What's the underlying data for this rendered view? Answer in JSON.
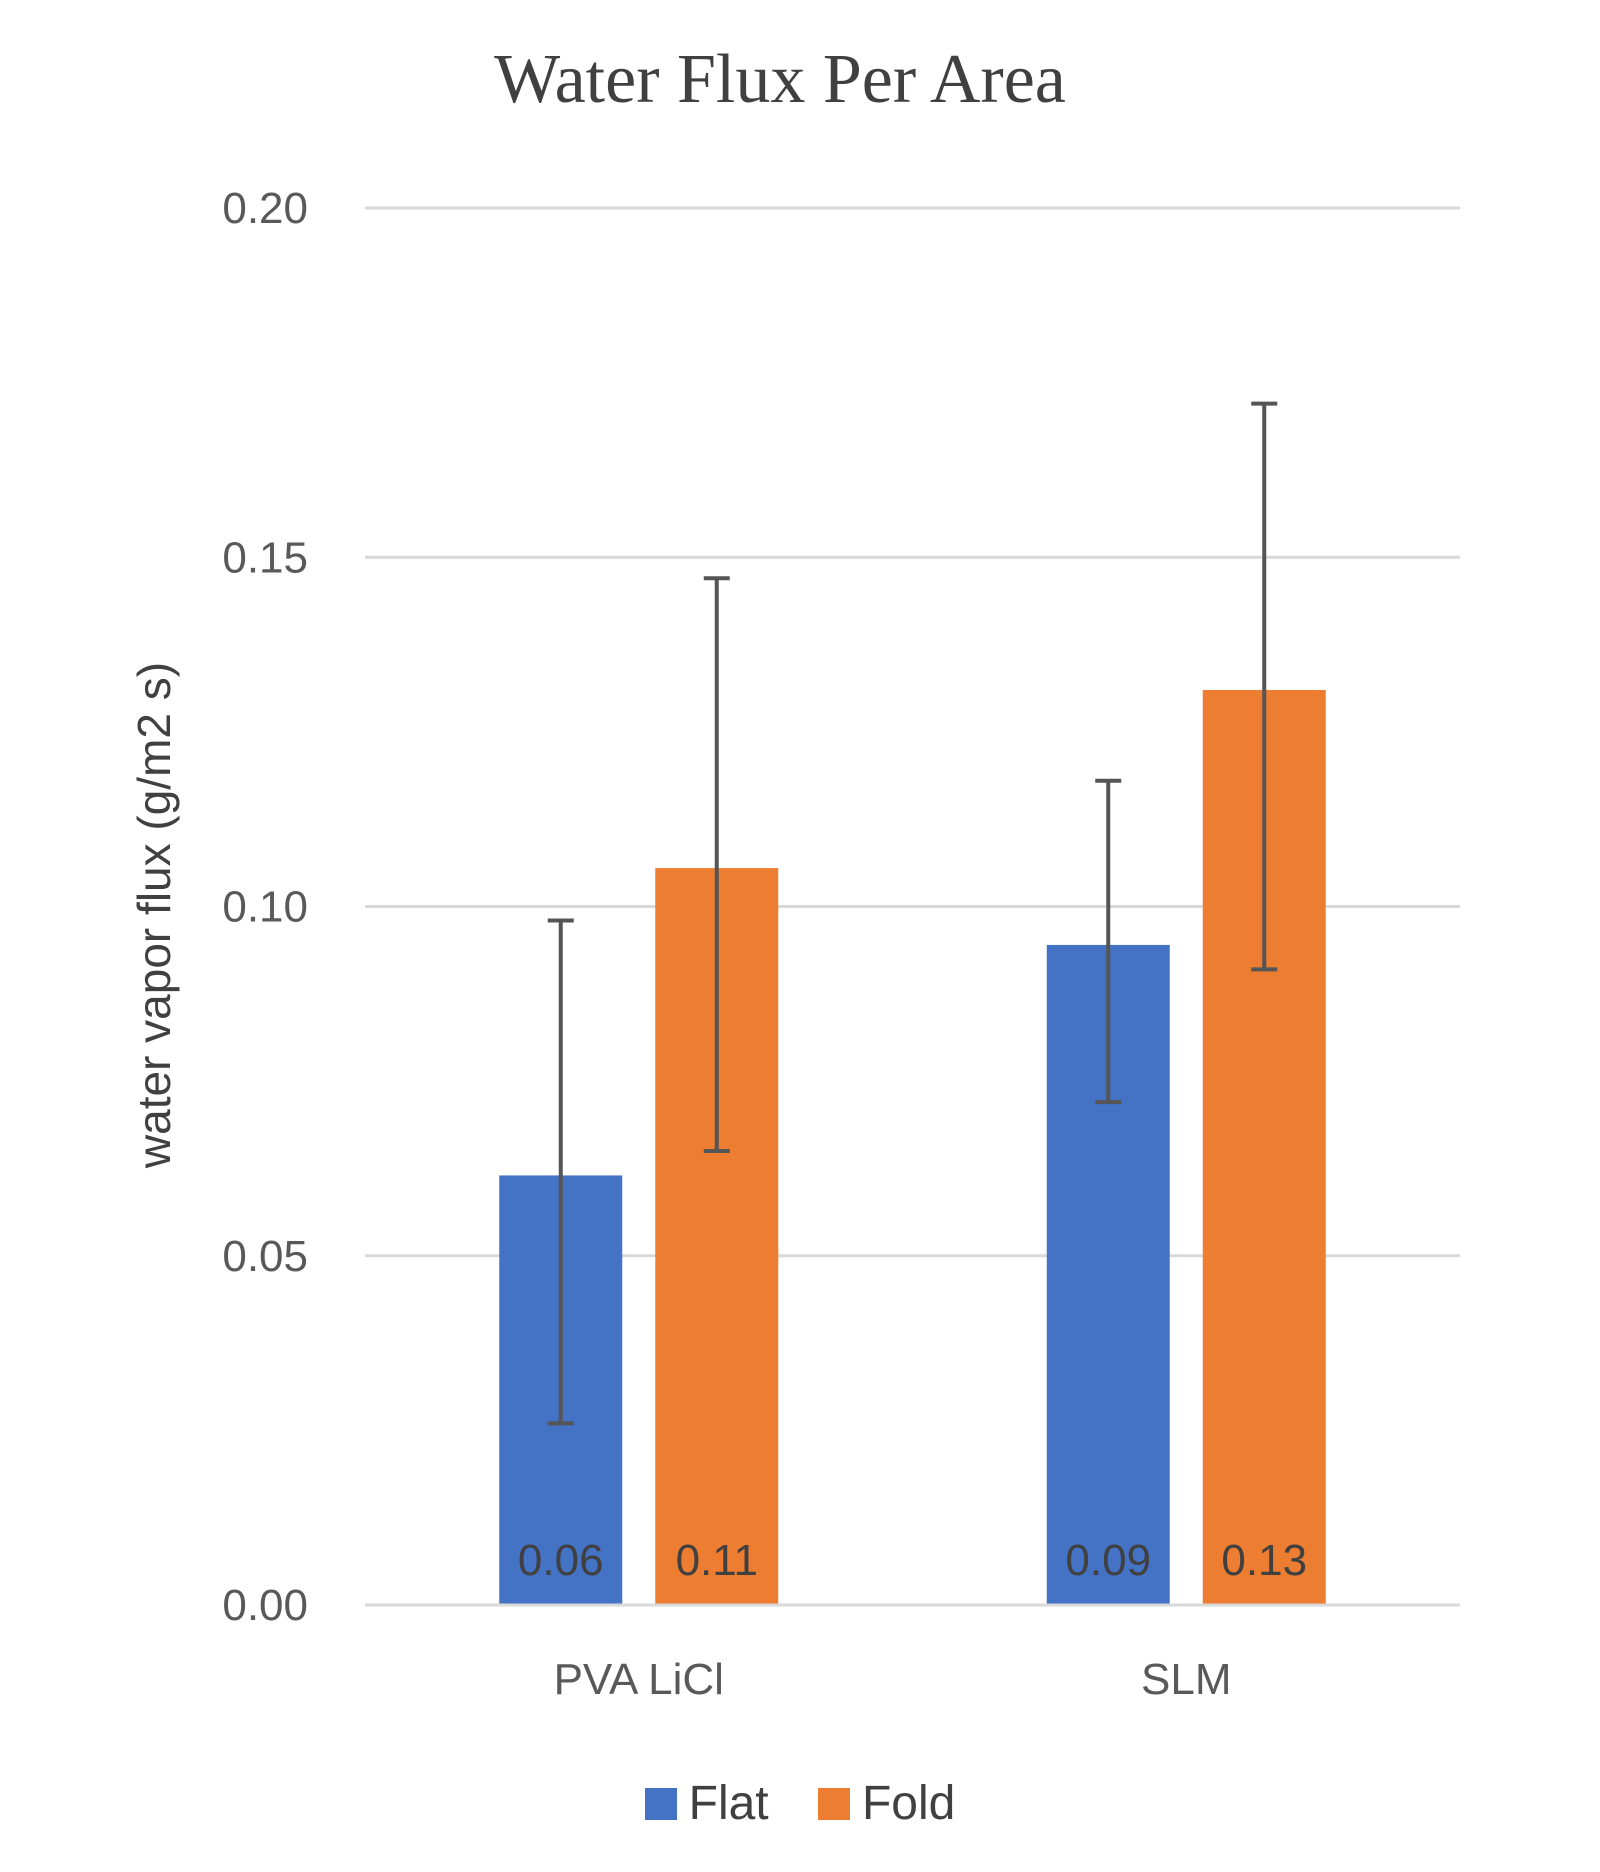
{
  "chart_data": {
    "type": "bar",
    "title": "Water Flux Per Area",
    "xlabel": "",
    "ylabel": "water vapor flux (g/m2 s)",
    "categories": [
      "PVA LiCl",
      "SLM"
    ],
    "series": [
      {
        "name": "Flat",
        "color": "#4472C4",
        "values": [
          0.0615,
          0.0945
        ],
        "labels": [
          "0.06",
          "0.09"
        ],
        "error_low": [
          0.026,
          0.072
        ],
        "error_high": [
          0.098,
          0.118
        ]
      },
      {
        "name": "Fold",
        "color": "#ED7D31",
        "values": [
          0.1055,
          0.131
        ],
        "labels": [
          "0.11",
          "0.13"
        ],
        "error_low": [
          0.065,
          0.091
        ],
        "error_high": [
          0.147,
          0.172
        ]
      }
    ],
    "ylim": [
      0,
      0.2
    ],
    "yticks": [
      "0.00",
      "0.05",
      "0.10",
      "0.15",
      "0.20"
    ],
    "ytick_values": [
      0,
      0.05,
      0.1,
      0.15,
      0.2
    ],
    "grid": true,
    "legend_position": "bottom"
  }
}
